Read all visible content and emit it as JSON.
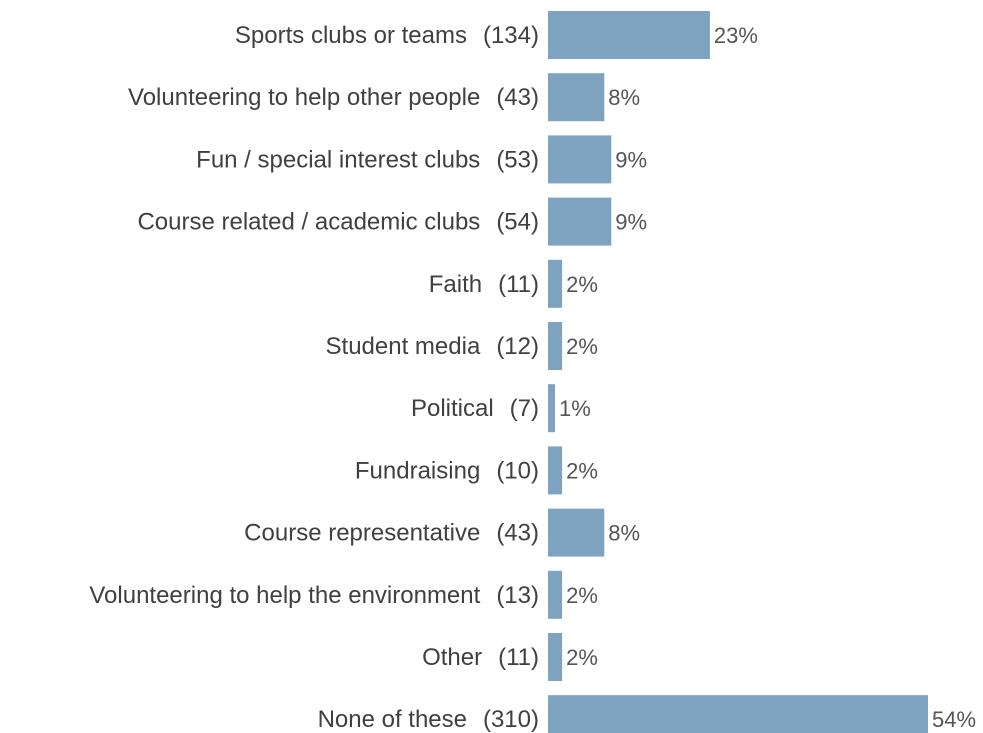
{
  "chart_data": {
    "type": "bar",
    "orientation": "horizontal",
    "categories": [
      "Sports clubs or teams",
      "Volunteering to help other people",
      "Fun / special interest clubs",
      "Course related / academic clubs",
      "Faith",
      "Student media",
      "Political",
      "Fundraising",
      "Course representative",
      "Volunteering to help the environment",
      "Other",
      "None of these"
    ],
    "counts": [
      "(134)",
      "(43)",
      "(53)",
      "(54)",
      "(11)",
      "(12)",
      "(7)",
      "(10)",
      "(43)",
      "(13)",
      "(11)",
      "(310)"
    ],
    "values": [
      23,
      8,
      9,
      9,
      2,
      2,
      1,
      2,
      8,
      2,
      2,
      54
    ],
    "value_labels": [
      "23%",
      "8%",
      "9%",
      "9%",
      "2%",
      "2%",
      "1%",
      "2%",
      "8%",
      "2%",
      "2%",
      "54%"
    ],
    "title": "",
    "xlabel": "",
    "ylabel": "",
    "xlim": [
      0,
      54
    ],
    "grid": false,
    "bar_color": "#7da3c0"
  }
}
